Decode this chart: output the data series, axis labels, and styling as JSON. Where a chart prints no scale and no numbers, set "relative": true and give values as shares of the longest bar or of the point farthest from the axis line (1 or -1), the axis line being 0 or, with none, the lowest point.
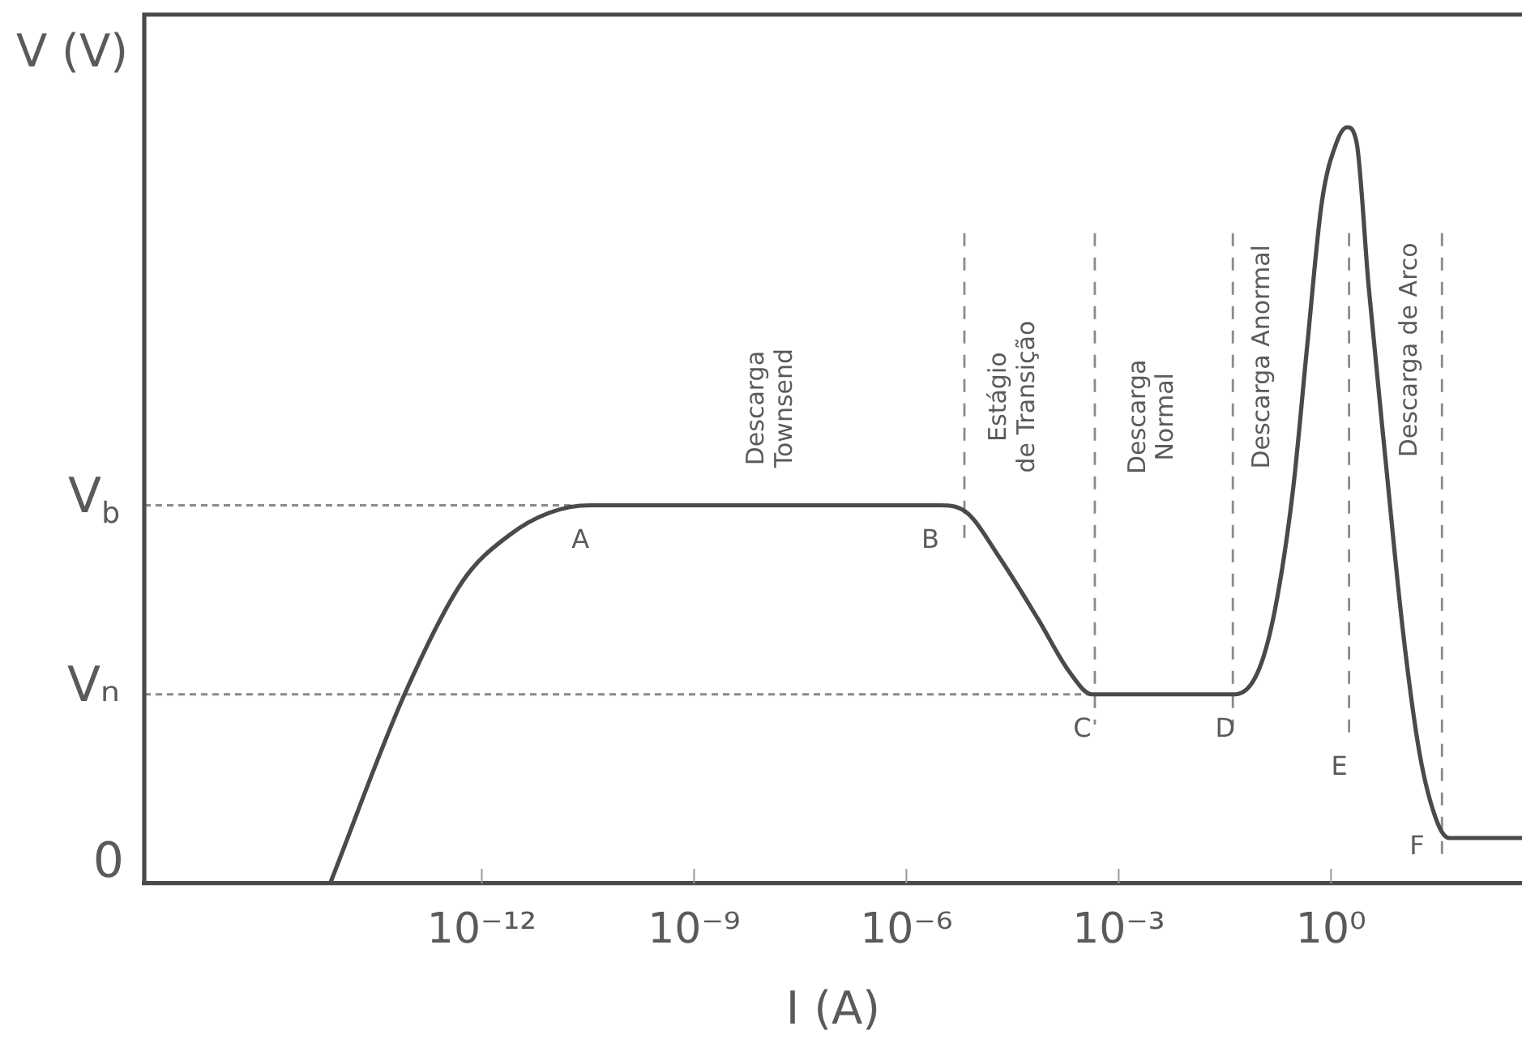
{
  "chart_data": {
    "type": "line",
    "relative": true,
    "log": "x",
    "xlabel": "I (A)",
    "ylabel": "V (V)",
    "xlim": [
      1.7e-17,
      500
    ],
    "xticks": [
      {
        "value": 1e-12,
        "label": "10⁻¹²"
      },
      {
        "value": 1e-09,
        "label": "10⁻⁹"
      },
      {
        "value": 1e-06,
        "label": "10⁻⁶"
      },
      {
        "value": 0.001,
        "label": "10⁻³"
      },
      {
        "value": 1,
        "label": "10⁰"
      }
    ],
    "x": [
      7.2e-15,
      8.1e-14,
      5.4e-13,
      2.4e-12,
      8.9e-12,
      3.4e-11,
      1.5e-10,
      4e-10,
      3e-06,
      7.2e-06,
      2.1e-05,
      7.2e-05,
      0.0002,
      0.00042,
      0.044,
      0.093,
      0.16,
      0.29,
      0.46,
      0.74,
      1.2,
      1.7,
      2.3,
      3.4,
      5.9,
      10.5,
      18,
      32,
      47,
      81,
      500
    ],
    "series": [
      {
        "color": "#4a4a4a",
        "values": [
          0,
          0.25,
          0.4,
          0.46,
          0.49,
          0.5,
          0.5,
          0.5,
          0.5,
          0.49,
          0.43,
          0.35,
          0.28,
          0.25,
          0.25,
          0.28,
          0.36,
          0.52,
          0.71,
          0.9,
          0.98,
          1,
          0.98,
          0.79,
          0.56,
          0.33,
          0.17,
          0.08,
          0.06,
          0.06,
          0.06
        ]
      }
    ],
    "ref_lines": [
      {
        "axis": "y",
        "value": 0.5,
        "label": "V$_{b}$",
        "line_style": "dotted",
        "color": "#8a8a8a"
      },
      {
        "axis": "y",
        "value": 0.25,
        "label": "Vₙ",
        "line_style": "dotted",
        "color": "#8a8a8a"
      },
      {
        "axis": "x",
        "value": 6.6e-06,
        "line_style": "dashed",
        "color": "#8a8a8a"
      },
      {
        "axis": "x",
        "value": 0.00046,
        "line_style": "dashed",
        "color": "#8a8a8a"
      },
      {
        "axis": "x",
        "value": 0.041,
        "line_style": "dashed",
        "color": "#8a8a8a"
      },
      {
        "axis": "x",
        "value": 1.8,
        "line_style": "dashed",
        "color": "#8a8a8a"
      },
      {
        "axis": "x",
        "value": 37,
        "line_style": "dashed",
        "color": "#8a8a8a"
      }
    ],
    "annotations": [
      "Descarga\nTownsend",
      "Estágio\nde Transição",
      "Descarga\nNormal",
      "Descarga Anormal",
      "Descarga de Arco",
      "0",
      {
        "text": "A",
        "x": 3.4e-11,
        "y": 0.5
      },
      {
        "text": "B",
        "x": 3e-06,
        "y": 0.5
      },
      {
        "text": "C",
        "x": 0.00042,
        "y": 0.25
      },
      {
        "text": "D",
        "x": 0.044,
        "y": 0.25
      },
      {
        "text": "E",
        "x": 1.8,
        "y": 0.2
      },
      {
        "text": "F",
        "x": 47,
        "y": 0.06
      }
    ]
  }
}
